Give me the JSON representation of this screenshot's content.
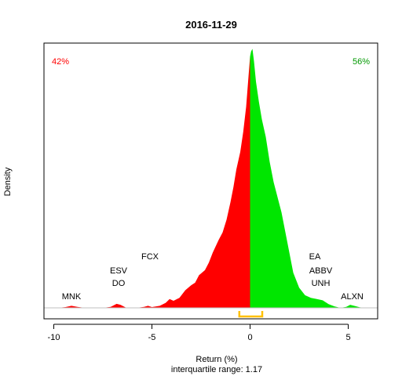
{
  "chart_data": {
    "type": "area",
    "title": "2016-11-29",
    "xlabel": "Return (%)",
    "ylabel": "Density",
    "subtitle": "interquartile range: 1.17",
    "xlim": [
      -10.5,
      6.5
    ],
    "ylim": [
      0,
      1.0
    ],
    "x_ticks": [
      -10,
      -5,
      0,
      5
    ],
    "split_at": 0,
    "pct_below": "42%",
    "pct_above": "56%",
    "colors": {
      "below": "#ff0000",
      "above": "#00e600",
      "iqr": "#ffc000",
      "baseline": "#bfbfbf"
    },
    "iqr": [
      -0.55,
      0.62
    ],
    "density": {
      "x": [
        -10.5,
        -9.8,
        -9.4,
        -9.1,
        -8.8,
        -8.4,
        -7.5,
        -7.1,
        -6.8,
        -6.6,
        -6.3,
        -5.8,
        -5.4,
        -5.2,
        -5.0,
        -4.6,
        -4.3,
        -4.1,
        -3.9,
        -3.6,
        -3.3,
        -3.0,
        -2.8,
        -2.6,
        -2.3,
        -2.1,
        -1.9,
        -1.6,
        -1.4,
        -1.2,
        -1.0,
        -0.85,
        -0.7,
        -0.5,
        -0.35,
        -0.2,
        -0.1,
        0.0,
        0.05,
        0.12,
        0.2,
        0.3,
        0.45,
        0.6,
        0.8,
        1.0,
        1.2,
        1.4,
        1.6,
        1.9,
        2.2,
        2.5,
        2.8,
        3.1,
        3.4,
        3.7,
        4.0,
        4.3,
        4.6,
        4.9,
        5.1,
        5.3,
        5.6,
        6.0,
        6.5
      ],
      "y": [
        0.0,
        0.0,
        0.003,
        0.008,
        0.004,
        0.0,
        0.0,
        0.004,
        0.016,
        0.012,
        0.0,
        0.0,
        0.004,
        0.008,
        0.003,
        0.008,
        0.02,
        0.035,
        0.028,
        0.04,
        0.07,
        0.09,
        0.1,
        0.13,
        0.15,
        0.18,
        0.22,
        0.27,
        0.3,
        0.35,
        0.42,
        0.48,
        0.55,
        0.62,
        0.7,
        0.8,
        0.9,
        1.0,
        1.02,
        1.03,
        0.98,
        0.9,
        0.82,
        0.75,
        0.68,
        0.58,
        0.5,
        0.44,
        0.38,
        0.26,
        0.14,
        0.08,
        0.05,
        0.04,
        0.035,
        0.03,
        0.015,
        0.006,
        0.0,
        0.004,
        0.012,
        0.008,
        0.002,
        0.0,
        0.0
      ]
    },
    "annotations": [
      {
        "text": "MNK",
        "x": -9.1,
        "level": 0
      },
      {
        "text": "ESV",
        "x": -6.7,
        "level": 2
      },
      {
        "text": "DO",
        "x": -6.7,
        "level": 1
      },
      {
        "text": "FCX",
        "x": -5.1,
        "level": 3
      },
      {
        "text": "EA",
        "x": 3.3,
        "level": 3
      },
      {
        "text": "ABBV",
        "x": 3.6,
        "level": 2
      },
      {
        "text": "UNH",
        "x": 3.6,
        "level": 1
      },
      {
        "text": "ALXN",
        "x": 5.2,
        "level": 0
      }
    ]
  }
}
